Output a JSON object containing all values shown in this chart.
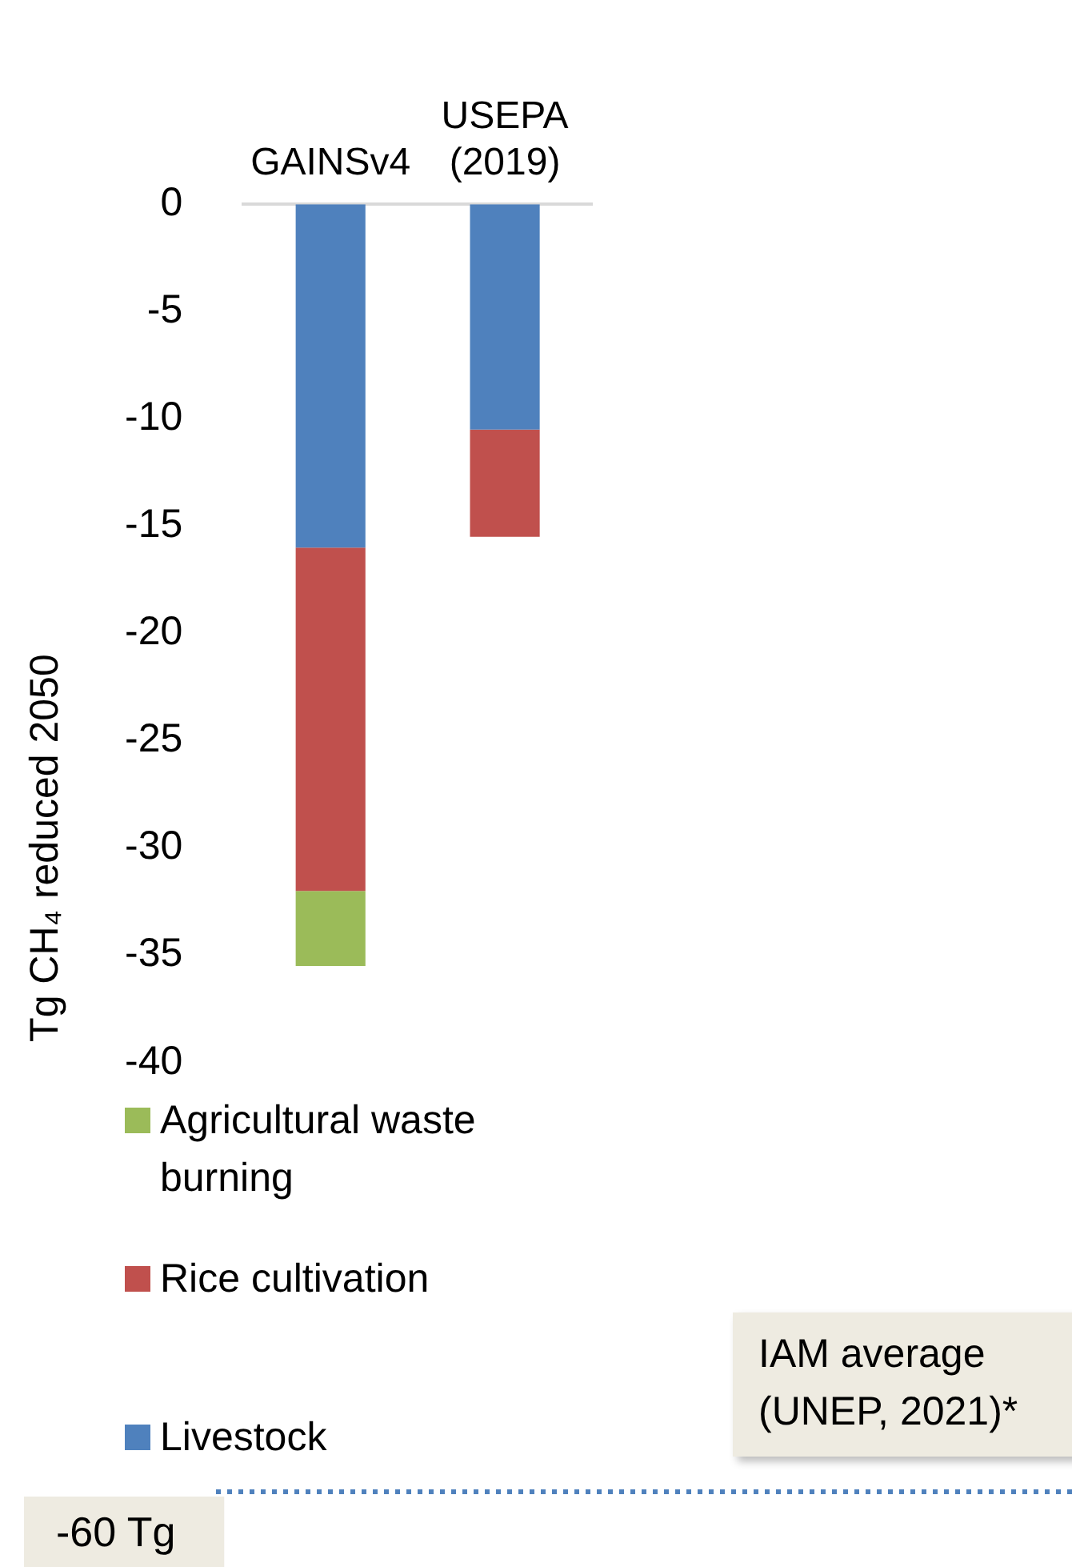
{
  "chart_data": {
    "type": "bar",
    "stacked": true,
    "categories": [
      "GAINSv4",
      "USEPA (2019)"
    ],
    "series": [
      {
        "name": "Livestock",
        "color": "#4f81bd",
        "values": [
          -16,
          -10.5
        ]
      },
      {
        "name": "Rice cultivation",
        "color": "#c0504d",
        "values": [
          -16,
          -5
        ]
      },
      {
        "name": "Agricultural waste burning",
        "color": "#9bbb59",
        "values": [
          -3.5,
          null
        ]
      }
    ],
    "ylabel": "Tg CH₄ reduced 2050",
    "ylim": [
      -60,
      0
    ],
    "yticks": [
      0,
      -5,
      -10,
      -15,
      -20,
      -25,
      -30,
      -35,
      -40
    ],
    "grid": false,
    "legend": "bottom left",
    "ref_lines": [
      {
        "axis": "y",
        "value": -60,
        "label": "-60 Tg",
        "color": "#4f81bd",
        "line_style": "dotted"
      }
    ],
    "annotations": [
      "IAM average (UNEP, 2021)*"
    ]
  }
}
